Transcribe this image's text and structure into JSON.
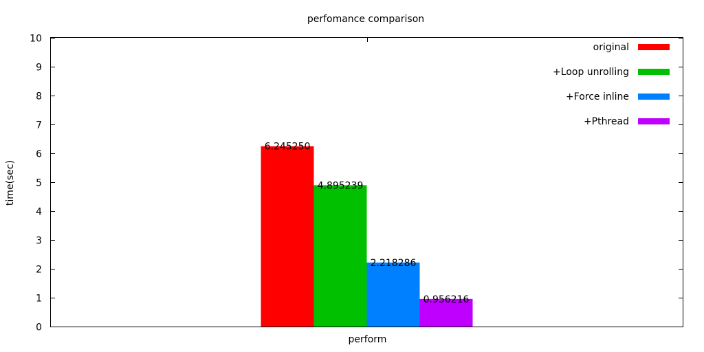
{
  "chart_data": {
    "type": "bar",
    "title": "perfomance comparison",
    "xlabel": "",
    "ylabel": "time(sec)",
    "ylim": [
      0,
      10
    ],
    "y_ticks": [
      "0",
      "1",
      "2",
      "3",
      "4",
      "5",
      "6",
      "7",
      "8",
      "9",
      "10"
    ],
    "categories": [
      "perform"
    ],
    "series": [
      {
        "name": "original",
        "values": [
          6.24525
        ],
        "label": "6.245250",
        "color": "#ff0000"
      },
      {
        "name": "+Loop unrolling",
        "values": [
          4.895239
        ],
        "label": "4.895239",
        "color": "#00c000"
      },
      {
        "name": "+Force inline",
        "values": [
          2.218286
        ],
        "label": "2.218286",
        "color": "#0080ff"
      },
      {
        "name": "+Pthread",
        "values": [
          0.956216
        ],
        "label": "0.956216",
        "color": "#c000ff"
      }
    ],
    "legend_position": "top-right",
    "grid": false
  }
}
